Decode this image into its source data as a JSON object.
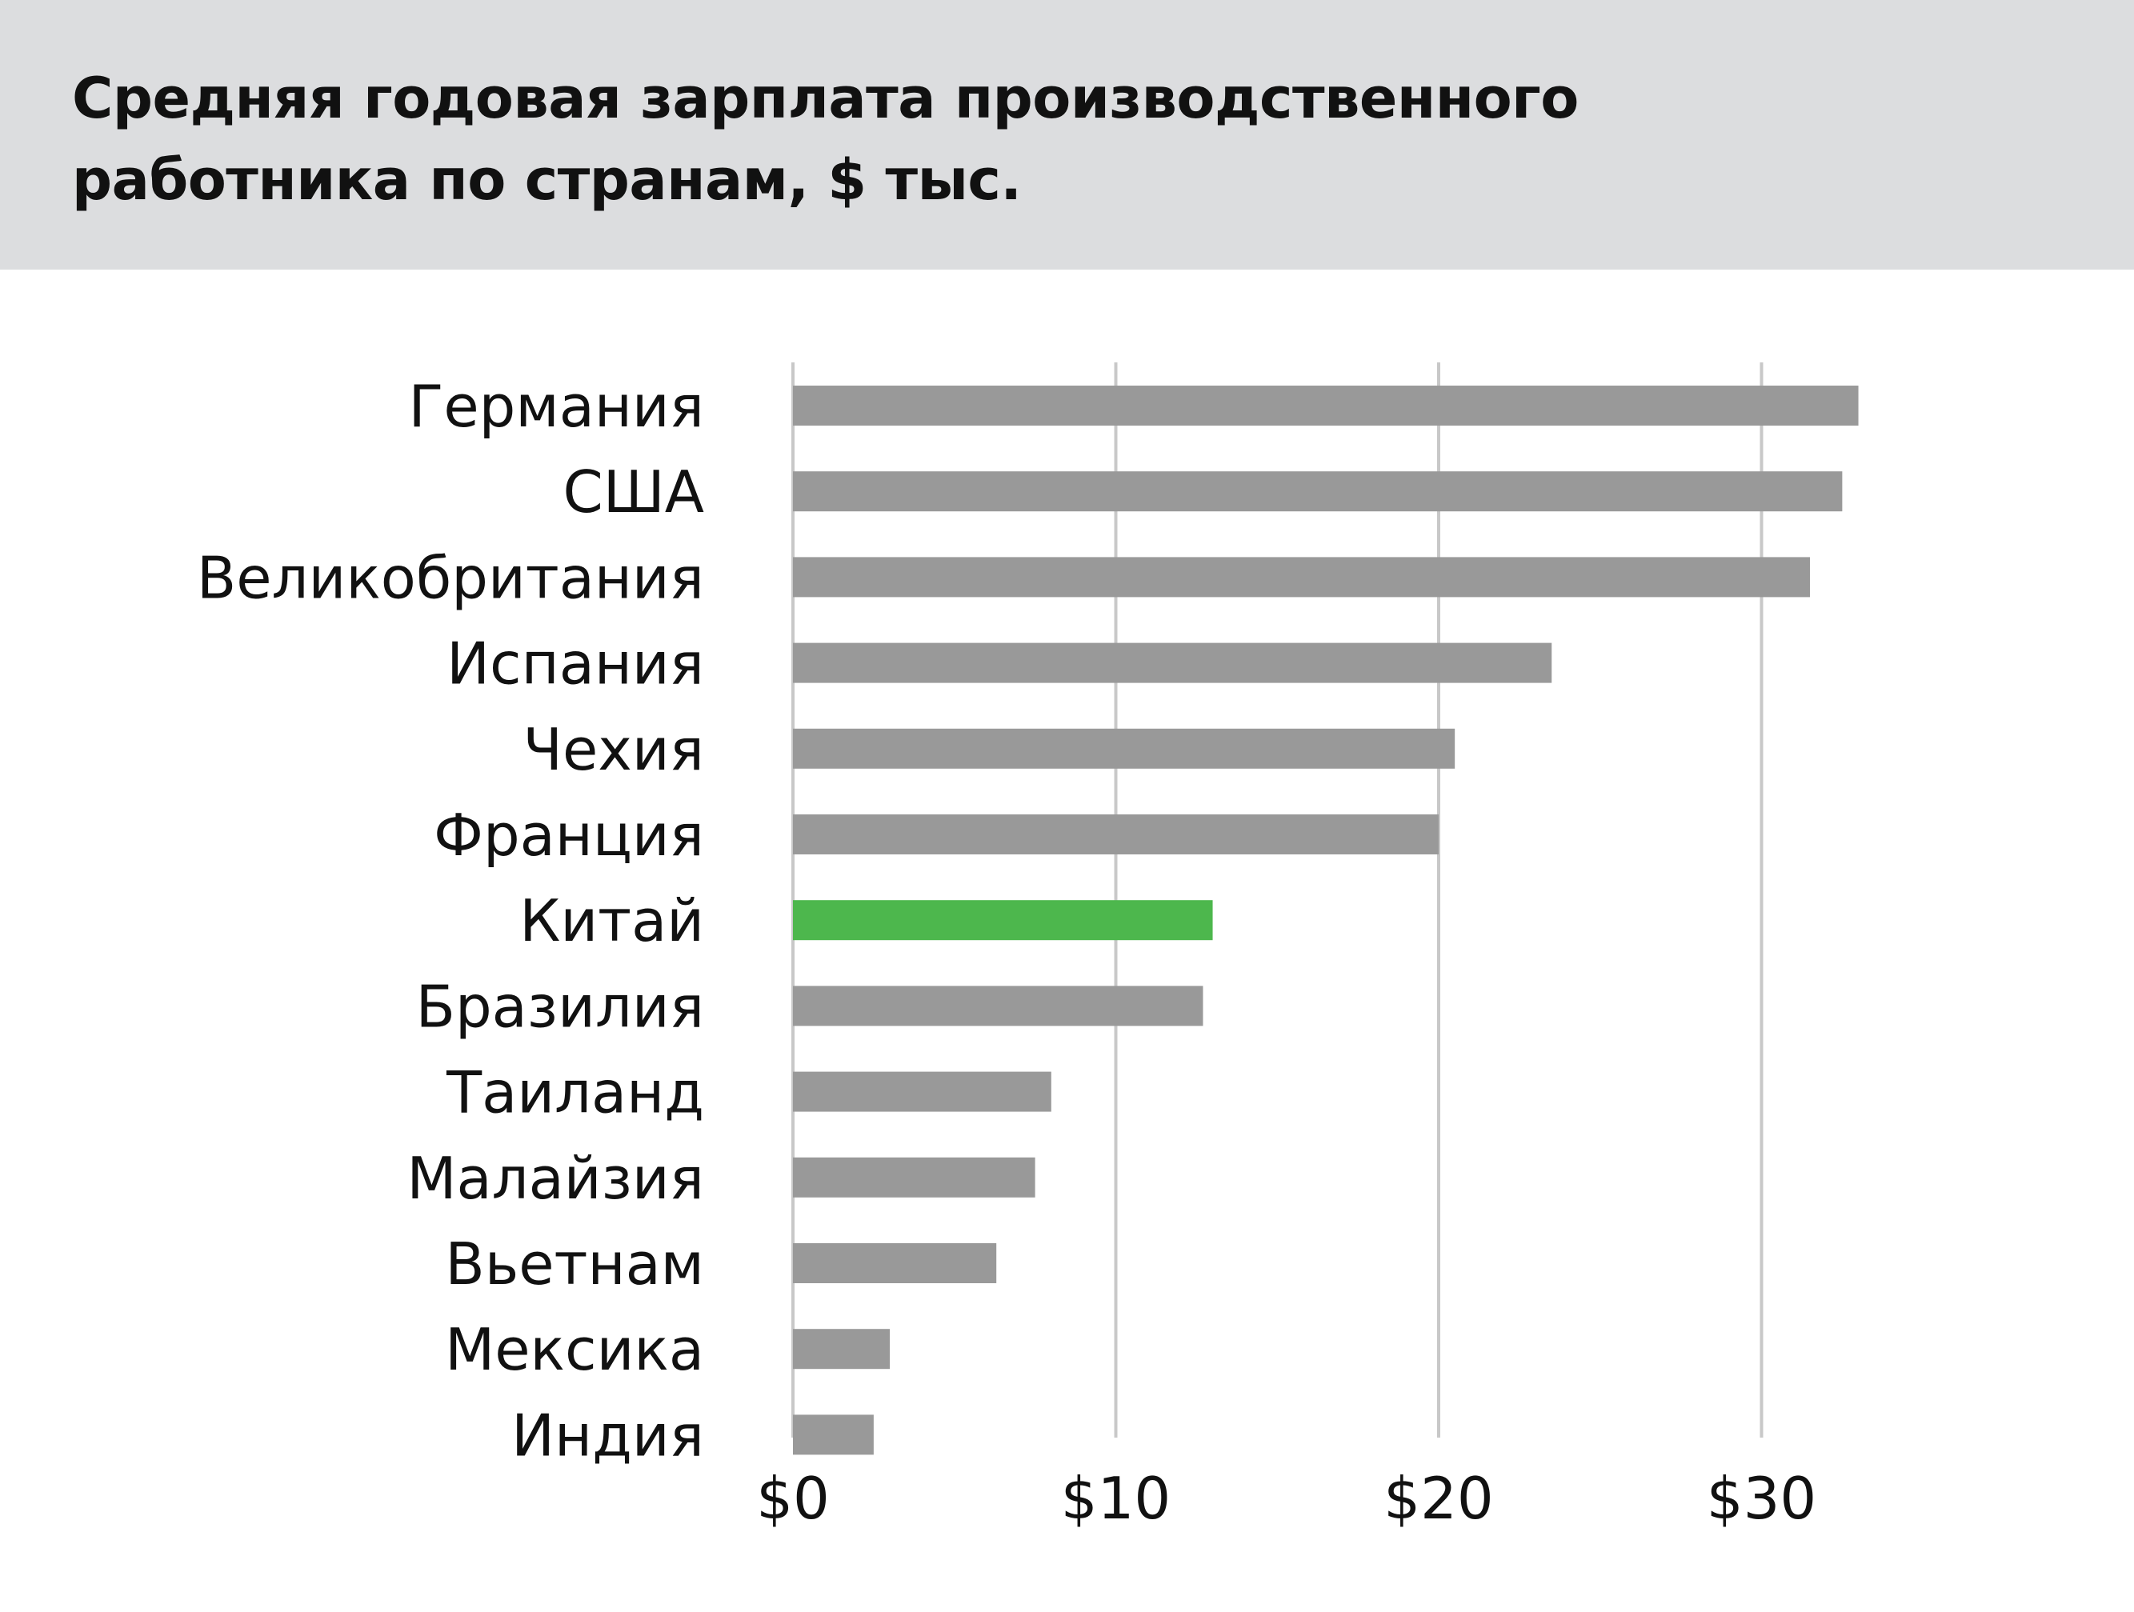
{
  "colors": {
    "header_bg": "#dcdddf",
    "bar_default": "#999999",
    "bar_highlight": "#4db74d",
    "gridline": "#c8c8c8"
  },
  "chart_data": {
    "type": "bar",
    "orientation": "horizontal",
    "title": "Средняя годовая зарплата производственного работника по странам, $ тыс.",
    "xlabel": "",
    "ylabel": "",
    "categories": [
      "Германия",
      "США",
      "Великобритания",
      "Испания",
      "Чехия",
      "Франция",
      "Китай",
      "Бразилия",
      "Таиланд",
      "Малайзия",
      "Вьетнам",
      "Мексика",
      "Индия"
    ],
    "values": [
      33,
      32.5,
      31.5,
      23.5,
      20.5,
      20,
      13,
      12.7,
      8,
      7.5,
      6.3,
      3,
      2.5
    ],
    "highlight": "Китай",
    "xlim": [
      0,
      35
    ],
    "xticks": [
      0,
      10,
      20,
      30
    ],
    "xtick_labels": [
      "$0",
      "$10",
      "$20",
      "$30"
    ],
    "grid": true
  }
}
